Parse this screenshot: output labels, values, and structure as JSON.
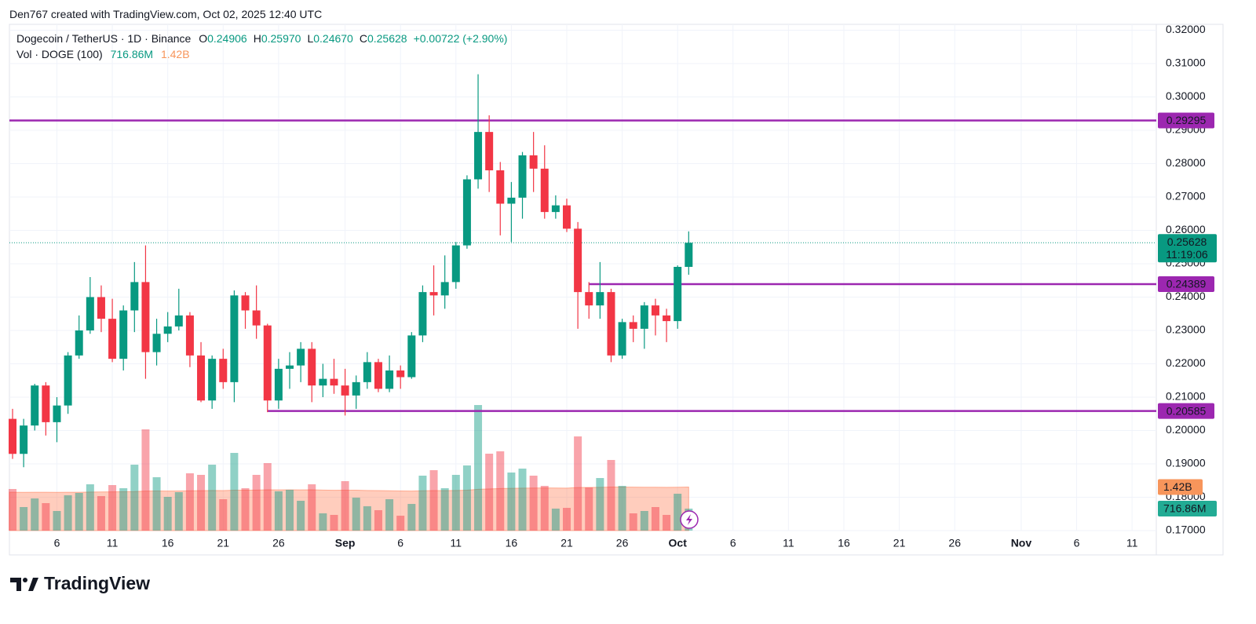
{
  "header": {
    "credit": "Den767 created with TradingView.com, Oct 02, 2025 12:40 UTC",
    "symbol": "Dogecoin / TetherUS · 1D · Binance",
    "ohlc": [
      {
        "key": "O",
        "value": "0.24906"
      },
      {
        "key": "H",
        "value": "0.25970"
      },
      {
        "key": "L",
        "value": "0.24670"
      },
      {
        "key": "C",
        "value": "0.25628"
      }
    ],
    "change": "+0.00722 (+2.90%)",
    "vol_title": "Vol · DOGE (100)",
    "vol_value": "716.86M",
    "vol_ma": "1.42B"
  },
  "logo": "TradingView",
  "chart_data": {
    "type": "candlestick",
    "up_color": "#089981",
    "down_color": "#f23645",
    "x": [
      "Aug 2",
      "Aug 3",
      "Aug 4",
      "Aug 5",
      "Aug 6",
      "Aug 7",
      "Aug 8",
      "Aug 9",
      "Aug 10",
      "Aug 11",
      "Aug 12",
      "Aug 13",
      "Aug 14",
      "Aug 15",
      "Aug 16",
      "Aug 17",
      "Aug 18",
      "Aug 19",
      "Aug 20",
      "Aug 21",
      "Aug 22",
      "Aug 23",
      "Aug 24",
      "Aug 25",
      "Aug 26",
      "Aug 27",
      "Aug 28",
      "Aug 29",
      "Aug 30",
      "Aug 31",
      "Sep 1",
      "Sep 2",
      "Sep 3",
      "Sep 4",
      "Sep 5",
      "Sep 6",
      "Sep 7",
      "Sep 8",
      "Sep 9",
      "Sep 10",
      "Sep 11",
      "Sep 12",
      "Sep 13",
      "Sep 14",
      "Sep 15",
      "Sep 16",
      "Sep 17",
      "Sep 18",
      "Sep 19",
      "Sep 20",
      "Sep 21",
      "Sep 22",
      "Sep 23",
      "Sep 24",
      "Sep 25",
      "Sep 26",
      "Sep 27",
      "Sep 28",
      "Sep 29",
      "Sep 30",
      "Oct 1",
      "Oct 2"
    ],
    "open": [
      0.2035,
      0.193,
      0.2015,
      0.2135,
      0.2025,
      0.2075,
      0.2225,
      0.23,
      0.24,
      0.2335,
      0.2215,
      0.236,
      0.2445,
      0.2235,
      0.229,
      0.2312,
      0.2345,
      0.2225,
      0.209,
      0.2215,
      0.2145,
      0.2405,
      0.236,
      0.2315,
      0.209,
      0.2185,
      0.2195,
      0.2245,
      0.2135,
      0.2155,
      0.2135,
      0.2105,
      0.2145,
      0.2205,
      0.2125,
      0.218,
      0.216,
      0.2285,
      0.2415,
      0.2405,
      0.2445,
      0.2555,
      0.2753,
      0.2895,
      0.278,
      0.268,
      0.2698,
      0.2825,
      0.2785,
      0.2655,
      0.2675,
      0.2605,
      0.2415,
      0.2375,
      0.2415,
      0.2225,
      0.2325,
      0.2305,
      0.2375,
      0.2345,
      0.2328,
      0.24906
    ],
    "high": [
      0.2065,
      0.2035,
      0.214,
      0.2145,
      0.21,
      0.2235,
      0.2345,
      0.246,
      0.2435,
      0.2395,
      0.2375,
      0.2505,
      0.2555,
      0.2335,
      0.2355,
      0.2425,
      0.2355,
      0.2265,
      0.2225,
      0.2245,
      0.242,
      0.2415,
      0.2435,
      0.232,
      0.2215,
      0.2235,
      0.2265,
      0.2265,
      0.22,
      0.2215,
      0.2185,
      0.2165,
      0.2235,
      0.2215,
      0.2225,
      0.2195,
      0.2295,
      0.2435,
      0.2495,
      0.2525,
      0.2565,
      0.2765,
      0.3068,
      0.2945,
      0.2805,
      0.2745,
      0.2835,
      0.2895,
      0.2855,
      0.2705,
      0.2695,
      0.2625,
      0.2445,
      0.2505,
      0.2425,
      0.2335,
      0.2345,
      0.2385,
      0.2395,
      0.2365,
      0.2495,
      0.2597
    ],
    "low": [
      0.1915,
      0.189,
      0.2,
      0.1985,
      0.1965,
      0.205,
      0.2215,
      0.229,
      0.2295,
      0.2205,
      0.218,
      0.2295,
      0.2155,
      0.2195,
      0.2265,
      0.23,
      0.219,
      0.2085,
      0.2065,
      0.2125,
      0.2085,
      0.2305,
      0.2275,
      0.2055,
      0.2065,
      0.2125,
      0.2145,
      0.2085,
      0.21,
      0.211,
      0.2045,
      0.2065,
      0.2125,
      0.2115,
      0.2115,
      0.2125,
      0.2155,
      0.2265,
      0.2345,
      0.2365,
      0.2425,
      0.2545,
      0.2725,
      0.2715,
      0.2585,
      0.2565,
      0.2635,
      0.2715,
      0.2635,
      0.2635,
      0.2595,
      0.2305,
      0.2335,
      0.2335,
      0.2205,
      0.2215,
      0.2265,
      0.2245,
      0.2285,
      0.2265,
      0.2305,
      0.2467
    ],
    "close": [
      0.193,
      0.2015,
      0.2135,
      0.2025,
      0.2075,
      0.2225,
      0.23,
      0.24,
      0.2335,
      0.2215,
      0.236,
      0.2445,
      0.2235,
      0.229,
      0.2312,
      0.2345,
      0.2225,
      0.209,
      0.2215,
      0.2145,
      0.2405,
      0.236,
      0.2315,
      0.209,
      0.2185,
      0.2195,
      0.2245,
      0.2135,
      0.2155,
      0.2135,
      0.2105,
      0.2145,
      0.2205,
      0.2125,
      0.218,
      0.216,
      0.2285,
      0.2415,
      0.2405,
      0.2445,
      0.2555,
      0.2753,
      0.2895,
      0.278,
      0.268,
      0.2698,
      0.2825,
      0.2785,
      0.2655,
      0.2675,
      0.2605,
      0.2415,
      0.2375,
      0.2415,
      0.2225,
      0.2325,
      0.2305,
      0.2375,
      0.2345,
      0.2328,
      0.24906,
      0.25628
    ],
    "ylim": [
      0.17,
      0.322
    ],
    "yticks": [
      {
        "value": 0.17,
        "label": "0.17000"
      },
      {
        "value": 0.18,
        "label": "0.18000"
      },
      {
        "value": 0.19,
        "label": "0.19000"
      },
      {
        "value": 0.2,
        "label": "0.20000"
      },
      {
        "value": 0.21,
        "label": "0.21000"
      },
      {
        "value": 0.22,
        "label": "0.22000"
      },
      {
        "value": 0.23,
        "label": "0.23000"
      },
      {
        "value": 0.24,
        "label": "0.24000"
      },
      {
        "value": 0.25,
        "label": "0.25000"
      },
      {
        "value": 0.26,
        "label": "0.26000"
      },
      {
        "value": 0.27,
        "label": "0.27000"
      },
      {
        "value": 0.28,
        "label": "0.28000"
      },
      {
        "value": 0.29,
        "label": "0.29000"
      },
      {
        "value": 0.3,
        "label": "0.30000"
      },
      {
        "value": 0.31,
        "label": "0.31000"
      },
      {
        "value": 0.32,
        "label": "0.32000"
      }
    ],
    "xticks": [
      {
        "value": "Aug 6",
        "label": "6"
      },
      {
        "value": "Aug 11",
        "label": "11"
      },
      {
        "value": "Aug 16",
        "label": "16"
      },
      {
        "value": "Aug 21",
        "label": "21"
      },
      {
        "value": "Aug 26",
        "label": "26"
      },
      {
        "value": "Sep 1",
        "label": "Sep"
      },
      {
        "value": "Sep 6",
        "label": "6"
      },
      {
        "value": "Sep 11",
        "label": "11"
      },
      {
        "value": "Sep 16",
        "label": "16"
      },
      {
        "value": "Sep 21",
        "label": "21"
      },
      {
        "value": "Sep 26",
        "label": "26"
      },
      {
        "value": "Oct 1",
        "label": "Oct"
      },
      {
        "value": "Oct 6",
        "label": "6"
      },
      {
        "value": "Oct 11",
        "label": "11"
      },
      {
        "value": "Oct 16",
        "label": "16"
      },
      {
        "value": "Oct 21",
        "label": "21"
      },
      {
        "value": "Oct 26",
        "label": "26"
      },
      {
        "value": "Nov 1",
        "label": "Nov"
      },
      {
        "value": "Nov 6",
        "label": "6"
      },
      {
        "value": "Nov 11",
        "label": "11"
      }
    ],
    "grid": true,
    "volume": {
      "values": [
        1357,
        768,
        1050,
        896,
        640,
        1152,
        1229,
        1510,
        1126,
        1485,
        1382,
        2150,
        3302,
        1741,
        1101,
        1254,
        1869,
        1818,
        2150,
        1024,
        2534,
        1382,
        1818,
        2202,
        1280,
        1331,
        973,
        1510,
        563,
        512,
        1613,
        1075,
        794,
        666,
        1024,
        486,
        870,
        1792,
        1971,
        1382,
        1818,
        2125,
        4096,
        2509,
        2586,
        1894,
        2022,
        1792,
        1459,
        717,
        742,
        3072,
        1408,
        1715,
        2304,
        1459,
        563,
        640,
        768,
        512,
        1203,
        716.86
      ],
      "ma": [
        1250,
        1248,
        1252,
        1250,
        1247,
        1250,
        1252,
        1258,
        1260,
        1265,
        1268,
        1275,
        1290,
        1292,
        1290,
        1292,
        1298,
        1302,
        1310,
        1305,
        1318,
        1318,
        1322,
        1330,
        1328,
        1330,
        1328,
        1330,
        1322,
        1315,
        1320,
        1318,
        1310,
        1305,
        1300,
        1292,
        1290,
        1298,
        1305,
        1305,
        1310,
        1318,
        1348,
        1360,
        1372,
        1378,
        1385,
        1390,
        1392,
        1388,
        1385,
        1405,
        1408,
        1412,
        1420,
        1422,
        1418,
        1415,
        1414,
        1410,
        1415,
        1420
      ],
      "ylim": [
        0,
        16540
      ],
      "ma_color": "#ff7043",
      "tags": [
        {
          "value": 1420,
          "label": "1.42B",
          "color": "#f7955b"
        },
        {
          "value": 716.86,
          "label": "716.86M",
          "color": "#22ab94"
        }
      ]
    },
    "levels": [
      {
        "value": 0.29295,
        "color": "#9c27b0"
      },
      {
        "value": 0.24389,
        "start": "Sep 23",
        "color": "#9c27b0"
      },
      {
        "value": 0.20585,
        "start": "Aug 25",
        "color": "#9c27b0"
      }
    ],
    "last_price": {
      "value": 0.25628,
      "countdown": "11:19:06",
      "color": "#089981"
    }
  }
}
